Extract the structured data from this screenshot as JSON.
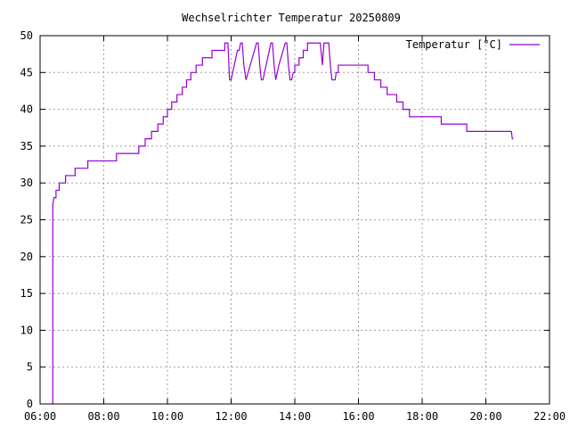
{
  "chart_data": {
    "type": "line",
    "title": "Wechselrichter Temperatur 20250809",
    "xlabel": "",
    "ylabel": "",
    "xlim": [
      "06:00",
      "22:00"
    ],
    "ylim": [
      0,
      50
    ],
    "x_ticks": [
      "06:00",
      "08:00",
      "10:00",
      "12:00",
      "14:00",
      "16:00",
      "18:00",
      "20:00",
      "22:00"
    ],
    "y_ticks": [
      0,
      5,
      10,
      15,
      20,
      25,
      30,
      35,
      40,
      45,
      50
    ],
    "grid": true,
    "legend_position": "top-right",
    "series": [
      {
        "name": "Temperatur [°C]",
        "color": "#9400d3",
        "points": [
          [
            "06:24",
            0
          ],
          [
            "06:24",
            27
          ],
          [
            "06:26",
            28
          ],
          [
            "06:30",
            28
          ],
          [
            "06:30",
            29
          ],
          [
            "06:36",
            29
          ],
          [
            "06:36",
            30
          ],
          [
            "06:48",
            30
          ],
          [
            "06:48",
            31
          ],
          [
            "07:06",
            31
          ],
          [
            "07:06",
            32
          ],
          [
            "07:30",
            32
          ],
          [
            "07:30",
            33
          ],
          [
            "08:24",
            33
          ],
          [
            "08:24",
            34
          ],
          [
            "09:06",
            34
          ],
          [
            "09:06",
            35
          ],
          [
            "09:18",
            35
          ],
          [
            "09:18",
            36
          ],
          [
            "09:30",
            36
          ],
          [
            "09:30",
            37
          ],
          [
            "09:42",
            37
          ],
          [
            "09:42",
            38
          ],
          [
            "09:52",
            38
          ],
          [
            "09:52",
            39
          ],
          [
            "10:00",
            39
          ],
          [
            "10:00",
            40
          ],
          [
            "10:08",
            40
          ],
          [
            "10:08",
            41
          ],
          [
            "10:18",
            41
          ],
          [
            "10:18",
            42
          ],
          [
            "10:28",
            42
          ],
          [
            "10:28",
            43
          ],
          [
            "10:36",
            43
          ],
          [
            "10:36",
            44
          ],
          [
            "10:44",
            44
          ],
          [
            "10:44",
            45
          ],
          [
            "10:54",
            45
          ],
          [
            "10:54",
            46
          ],
          [
            "11:06",
            46
          ],
          [
            "11:06",
            47
          ],
          [
            "11:24",
            47
          ],
          [
            "11:24",
            48
          ],
          [
            "11:48",
            48
          ],
          [
            "11:48",
            49
          ],
          [
            "11:54",
            49
          ],
          [
            "11:57",
            44
          ],
          [
            "12:00",
            44
          ],
          [
            "12:03",
            45
          ],
          [
            "12:06",
            46
          ],
          [
            "12:09",
            47
          ],
          [
            "12:12",
            48
          ],
          [
            "12:15",
            48
          ],
          [
            "12:18",
            49
          ],
          [
            "12:21",
            49
          ],
          [
            "12:24",
            46
          ],
          [
            "12:28",
            44
          ],
          [
            "12:32",
            45
          ],
          [
            "12:36",
            46
          ],
          [
            "12:40",
            47
          ],
          [
            "12:44",
            48
          ],
          [
            "12:48",
            49
          ],
          [
            "12:51",
            49
          ],
          [
            "12:54",
            46
          ],
          [
            "12:57",
            44
          ],
          [
            "13:00",
            44
          ],
          [
            "13:03",
            45
          ],
          [
            "13:06",
            46
          ],
          [
            "13:09",
            47
          ],
          [
            "13:12",
            48
          ],
          [
            "13:15",
            49
          ],
          [
            "13:18",
            49
          ],
          [
            "13:21",
            46
          ],
          [
            "13:24",
            44
          ],
          [
            "13:27",
            45
          ],
          [
            "13:30",
            46
          ],
          [
            "13:34",
            47
          ],
          [
            "13:38",
            48
          ],
          [
            "13:42",
            49
          ],
          [
            "13:45",
            49
          ],
          [
            "13:48",
            46
          ],
          [
            "13:51",
            44
          ],
          [
            "13:54",
            44
          ],
          [
            "13:57",
            45
          ],
          [
            "14:00",
            45
          ],
          [
            "14:00",
            46
          ],
          [
            "14:08",
            46
          ],
          [
            "14:08",
            47
          ],
          [
            "14:16",
            47
          ],
          [
            "14:16",
            48
          ],
          [
            "14:24",
            48
          ],
          [
            "14:24",
            49
          ],
          [
            "14:48",
            49
          ],
          [
            "14:52",
            46
          ],
          [
            "14:55",
            49
          ],
          [
            "15:04",
            49
          ],
          [
            "15:07",
            46
          ],
          [
            "15:10",
            44
          ],
          [
            "15:16",
            44
          ],
          [
            "15:18",
            45
          ],
          [
            "15:22",
            45
          ],
          [
            "15:22",
            46
          ],
          [
            "16:18",
            46
          ],
          [
            "16:18",
            45
          ],
          [
            "16:30",
            45
          ],
          [
            "16:30",
            44
          ],
          [
            "16:42",
            44
          ],
          [
            "16:42",
            43
          ],
          [
            "16:54",
            43
          ],
          [
            "16:54",
            42
          ],
          [
            "17:12",
            42
          ],
          [
            "17:12",
            41
          ],
          [
            "17:24",
            41
          ],
          [
            "17:24",
            40
          ],
          [
            "17:36",
            40
          ],
          [
            "17:36",
            39
          ],
          [
            "18:00",
            39
          ],
          [
            "18:00",
            39
          ],
          [
            "18:36",
            39
          ],
          [
            "18:36",
            38
          ],
          [
            "19:24",
            38
          ],
          [
            "19:24",
            37
          ],
          [
            "20:48",
            37
          ],
          [
            "20:50",
            36
          ],
          [
            "20:52",
            36
          ]
        ]
      }
    ]
  }
}
